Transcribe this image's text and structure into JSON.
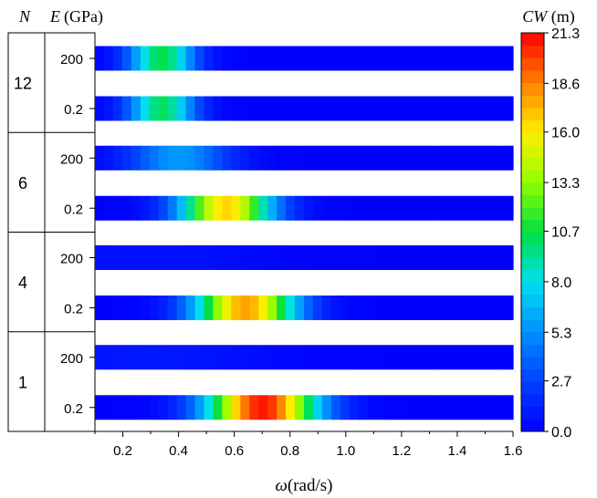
{
  "chart_data": {
    "type": "heatmap",
    "header": {
      "n_label": "N",
      "e_label": "E",
      "e_unit": "(GPa)"
    },
    "x_axis": {
      "label_symbol": "ω",
      "label_unit": "(rad/s)",
      "range": [
        0.1,
        1.6
      ],
      "ticks": [
        0.2,
        0.4,
        0.6,
        0.8,
        1.0,
        1.2,
        1.4,
        1.6
      ],
      "tick_labels": [
        "0.2",
        "0.4",
        "0.6",
        "0.8",
        "1.0",
        "1.2",
        "1.4",
        "1.6"
      ]
    },
    "colorbar": {
      "label_symbol": "CW",
      "label_unit": " (m)",
      "range": [
        0,
        21.3
      ],
      "ticks": [
        0.0,
        2.7,
        5.3,
        8.0,
        10.7,
        13.3,
        16.0,
        18.6,
        21.3
      ],
      "tick_labels": [
        "0.0",
        "2.7",
        "5.3",
        "8.0",
        "10.7",
        "13.3",
        "16.0",
        "18.6",
        "21.3"
      ]
    },
    "groups": [
      {
        "N": "12",
        "rows": [
          {
            "E": "200",
            "peak": {
              "omega": 0.34,
              "value": 10.5,
              "width": 0.085
            }
          },
          {
            "E": "0.2",
            "peak": {
              "omega": 0.34,
              "value": 10.2,
              "width": 0.085
            }
          }
        ]
      },
      {
        "N": "6",
        "rows": [
          {
            "E": "200",
            "peak": {
              "omega": 0.4,
              "value": 5.6,
              "width": 0.13
            }
          },
          {
            "E": "0.2",
            "peak": {
              "omega": 0.57,
              "value": 16.5,
              "width": 0.12
            }
          }
        ]
      },
      {
        "N": "4",
        "rows": [
          {
            "E": "200",
            "peak": {
              "omega": 0.3,
              "value": 0.7,
              "width": 0.3
            }
          },
          {
            "E": "0.2",
            "peak": {
              "omega": 0.64,
              "value": 17.8,
              "width": 0.13
            }
          }
        ]
      },
      {
        "N": "1",
        "rows": [
          {
            "E": "200",
            "peak": {
              "omega": 0.3,
              "value": 1.0,
              "width": 0.3
            }
          },
          {
            "E": "0.2",
            "peak": {
              "omega": 0.7,
              "value": 20.8,
              "width": 0.14
            }
          }
        ]
      }
    ]
  }
}
